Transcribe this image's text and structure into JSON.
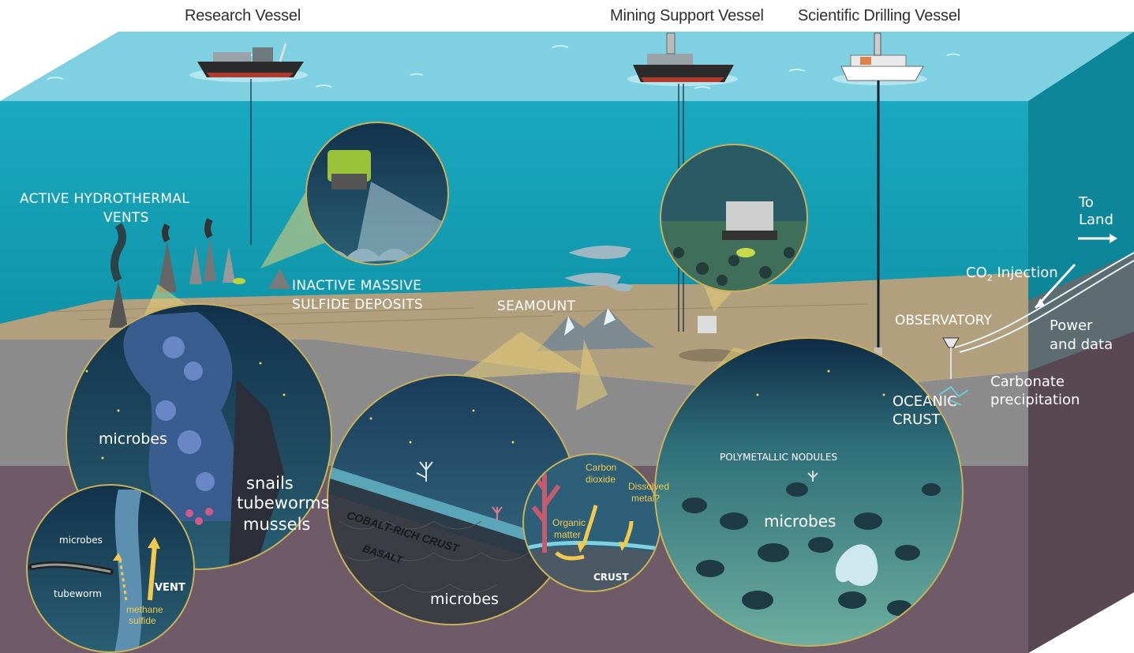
{
  "vessels": {
    "research": "Research Vessel",
    "mining": "Mining Support Vessel",
    "drilling": "Scientific Drilling Vessel"
  },
  "labels": {
    "vents_line1": "ACTIVE HYDROTHERMAL",
    "vents_line2": "VENTS",
    "inactive_line1": "INACTIVE MASSIVE",
    "inactive_line2": "SULFIDE DEPOSITS",
    "seamount": "SEAMOUNT",
    "to_land_line1": "To",
    "to_land_line2": "Land",
    "co2_prefix": "CO",
    "co2_sub": "2",
    "co2_suffix": " Injection",
    "observatory": "OBSERVATORY",
    "power_line1": "Power",
    "power_line2": "and data",
    "oceanic_line1": "OCEANIC",
    "oceanic_line2": "CRUST",
    "carbonate_line1": "Carbonate",
    "carbonate_line2": "precipitation"
  },
  "vent_circle": {
    "microbes": "microbes",
    "snails": "snails",
    "tubeworms": "tubeworms",
    "mussels": "mussels"
  },
  "small_vent_circle": {
    "microbes": "microbes",
    "tubeworm": "tubeworm",
    "vent": "VENT",
    "methane": "methane",
    "sulfide": "sulfide"
  },
  "seamount_circle": {
    "crust": "COBALT-RICH CRUST",
    "basalt": "BASALT",
    "microbes": "microbes"
  },
  "crust_circle": {
    "carbon_line1": "Carbon",
    "carbon_line2": "dioxide",
    "dissolved_line1": "Dissolved",
    "dissolved_line2": "metal?",
    "organic_line1": "Organic",
    "organic_line2": "matter",
    "crust": "CRUST"
  },
  "nodule_circle": {
    "title": "POLYMETALLIC NODULES",
    "microbes": "microbes"
  },
  "colors": {
    "ocean": "#17a9bd",
    "surface": "#7fd0e0",
    "seafloor": "#b29f7e",
    "crust_gray": "#8b8b8b",
    "mantle": "#6f5b68",
    "label_yellow": "#f2c94c"
  }
}
